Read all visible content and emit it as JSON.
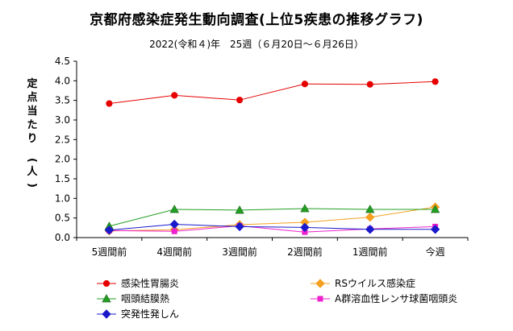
{
  "chart_data": {
    "type": "line",
    "title": "京都府感染症発生動向調査(上位5疾患の推移グラフ)",
    "subtitle": "2022(令和４)年　25週（６月20日～６月26日）",
    "ylabel": "定点当たり　(人)",
    "xlabel": "",
    "categories": [
      "5週間前",
      "4週間前",
      "3週間前",
      "2週間前",
      "1週間前",
      "今週"
    ],
    "ylim": [
      0,
      4.5
    ],
    "ytick_labels": [
      "0.0",
      "0.5",
      "1.0",
      "1.5",
      "2.0",
      "2.5",
      "3.0",
      "3.5",
      "4.0",
      "4.5"
    ],
    "grid": false,
    "legend_position": "bottom",
    "series": [
      {
        "name": "感染性胃腸炎",
        "color": "#e60000",
        "marker": "circle",
        "values": [
          3.42,
          3.63,
          3.51,
          3.92,
          3.91,
          3.98
        ]
      },
      {
        "name": "RSウイルス感染症",
        "color": "#f5a020",
        "marker": "diamond",
        "values": [
          0.17,
          0.2,
          0.33,
          0.39,
          0.52,
          0.78
        ]
      },
      {
        "name": "咽頭結膜熱",
        "color": "#22a022",
        "marker": "triangle",
        "values": [
          0.29,
          0.72,
          0.7,
          0.74,
          0.72,
          0.72
        ]
      },
      {
        "name": "A群溶血性レンサ球菌咽頭炎",
        "color": "#ee22cc",
        "marker": "square",
        "values": [
          0.18,
          0.16,
          0.3,
          0.14,
          0.22,
          0.28
        ]
      },
      {
        "name": "突発性発しん",
        "color": "#1a1acc",
        "marker": "diamond",
        "values": [
          0.19,
          0.34,
          0.28,
          0.26,
          0.21,
          0.21
        ]
      }
    ]
  }
}
